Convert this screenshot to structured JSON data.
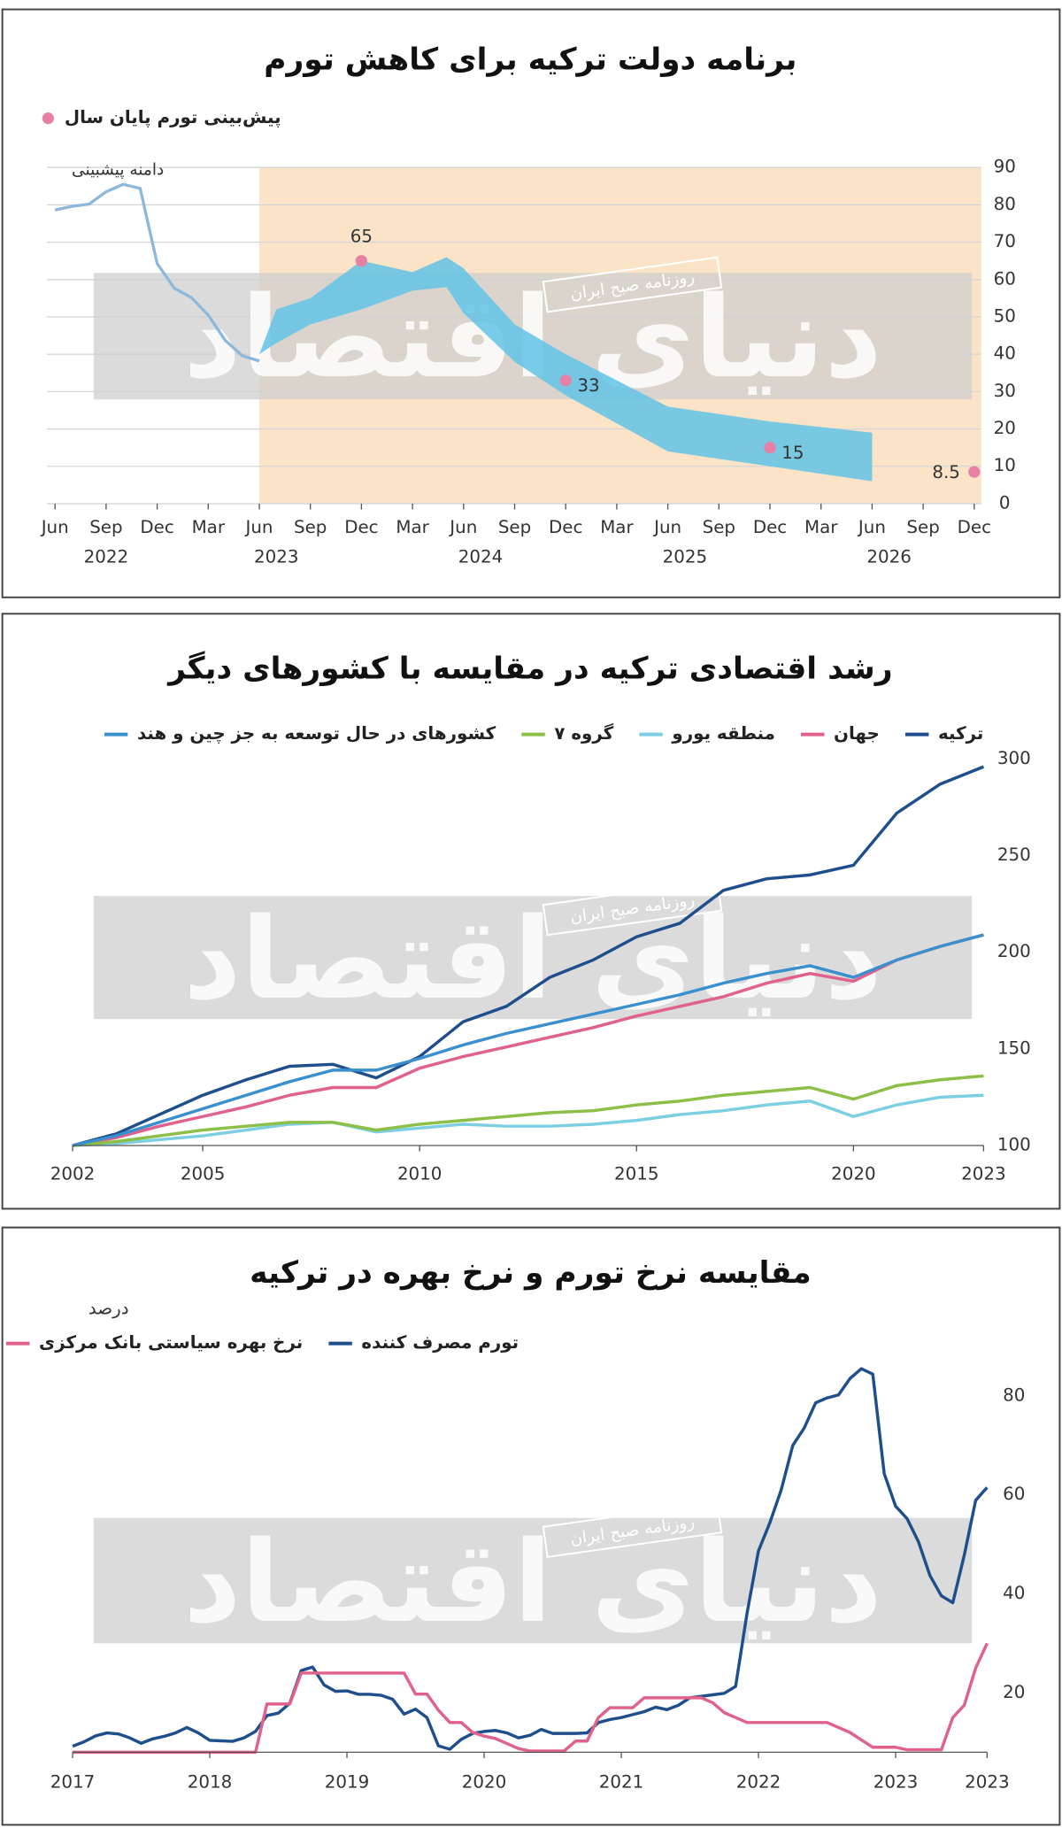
{
  "chart_data": [
    {
      "type": "line",
      "title": "برنامه دولت ترکیه برای کاهش تورم",
      "x": [
        "2022-06",
        "2022-07",
        "2022-08",
        "2022-09",
        "2022-10",
        "2022-11",
        "2022-12",
        "2023-01",
        "2023-02",
        "2023-03",
        "2023-04",
        "2023-05",
        "2023-06"
      ],
      "values": [
        78.6,
        79.6,
        80.2,
        83.5,
        85.5,
        84.4,
        64.3,
        57.7,
        55.2,
        50.5,
        43.7,
        39.6,
        38.2
      ],
      "color": "#8cb8dc",
      "band": {
        "name": "دامنه پیشبینی",
        "x": [
          "2023-06",
          "2023-07",
          "2023-09",
          "2023-12",
          "2024-03",
          "2024-05",
          "2024-06",
          "2024-09",
          "2024-12",
          "2025-06",
          "2025-12",
          "2026-06"
        ],
        "lower": [
          40,
          43,
          48,
          52,
          57,
          58,
          51,
          38,
          29,
          14,
          10,
          6
        ],
        "upper": [
          40,
          52,
          55,
          65,
          62,
          66,
          63,
          48,
          40,
          26,
          22,
          19
        ],
        "color": "#62c3e6"
      },
      "points": {
        "name": "پیش‌بینی تورم پایان سال",
        "x": [
          "2023-12",
          "2024-12",
          "2025-12",
          "2026-12"
        ],
        "values": [
          65,
          33,
          15,
          8.5
        ],
        "color": "#e77fa6"
      },
      "shaded_period": {
        "from": "2023-06",
        "to": "2026-12",
        "color": "#fbe3c8"
      },
      "xlim": [
        "2022-06",
        "2026-12"
      ],
      "xticks": [
        {
          "value": "2022-06",
          "label": "Jun"
        },
        {
          "value": "2022-09",
          "label": "Sep"
        },
        {
          "value": "2022-12",
          "label": "Dec"
        },
        {
          "value": "2023-03",
          "label": "Mar"
        },
        {
          "value": "2023-06",
          "label": "Jun"
        },
        {
          "value": "2023-09",
          "label": "Sep"
        },
        {
          "value": "2023-12",
          "label": "Dec"
        },
        {
          "value": "2024-03",
          "label": "Mar"
        },
        {
          "value": "2024-06",
          "label": "Jun"
        },
        {
          "value": "2024-09",
          "label": "Sep"
        },
        {
          "value": "2024-12",
          "label": "Dec"
        },
        {
          "value": "2025-03",
          "label": "Mar"
        },
        {
          "value": "2025-06",
          "label": "Jun"
        },
        {
          "value": "2025-09",
          "label": "Sep"
        },
        {
          "value": "2025-12",
          "label": "Dec"
        },
        {
          "value": "2026-03",
          "label": "Mar"
        },
        {
          "value": "2026-06",
          "label": "Jun"
        },
        {
          "value": "2026-09",
          "label": "Sep"
        },
        {
          "value": "2026-12",
          "label": "Dec"
        }
      ],
      "year_labels": [
        {
          "value": "2022-09",
          "label": "2022"
        },
        {
          "value": "2023-07",
          "label": "2023"
        },
        {
          "value": "2024-07",
          "label": "2024"
        },
        {
          "value": "2025-07",
          "label": "2025"
        },
        {
          "value": "2026-07",
          "label": "2026"
        }
      ],
      "ylim": [
        0,
        90
      ],
      "yticks": [
        0,
        10,
        20,
        30,
        40,
        50,
        60,
        70,
        80,
        90
      ],
      "grid": true,
      "watermark": {
        "logo": "دنیای اقتصاد",
        "tag": "روزنامه صبح ایران"
      }
    },
    {
      "type": "line",
      "title": "رشد اقتصادی ترکیه در مقایسه با کشورهای دیگر",
      "x": [
        2002,
        2003,
        2004,
        2005,
        2006,
        2007,
        2008,
        2009,
        2010,
        2011,
        2012,
        2013,
        2014,
        2015,
        2016,
        2017,
        2018,
        2019,
        2020,
        2021,
        2022,
        2023
      ],
      "series": [
        {
          "name": "ترکیه",
          "color": "#1f4e8c",
          "values": [
            100,
            106,
            116,
            126,
            134,
            141,
            142,
            135,
            146,
            164,
            172,
            187,
            196,
            208,
            215,
            232,
            238,
            240,
            245,
            272,
            287,
            296
          ]
        },
        {
          "name": "جهان",
          "color": "#e0628a",
          "values": [
            100,
            104,
            110,
            115,
            120,
            126,
            130,
            130,
            140,
            146,
            151,
            156,
            161,
            167,
            172,
            177,
            184,
            189,
            185,
            196,
            203,
            209
          ]
        },
        {
          "name": "منطقه یورو",
          "color": "#7ccfe0",
          "values": [
            100,
            101,
            103,
            105,
            108,
            111,
            112,
            107,
            109,
            111,
            110,
            110,
            111,
            113,
            116,
            118,
            121,
            123,
            115,
            121,
            125,
            126
          ]
        },
        {
          "name": "گروه ۷",
          "color": "#8cbf45",
          "values": [
            100,
            102,
            105,
            108,
            110,
            112,
            112,
            108,
            111,
            113,
            115,
            117,
            118,
            121,
            123,
            126,
            128,
            130,
            124,
            131,
            134,
            136
          ]
        },
        {
          "name": "کشورهای در حال توسعه به جز چین و هند",
          "color": "#3a8fcf",
          "values": [
            100,
            105,
            112,
            119,
            126,
            133,
            139,
            139,
            145,
            152,
            158,
            163,
            168,
            173,
            178,
            184,
            189,
            193,
            187,
            196,
            203,
            209
          ]
        }
      ],
      "xlim": [
        2002,
        2023
      ],
      "xticks": [
        2002,
        2005,
        2010,
        2015,
        2020,
        2023
      ],
      "ylim": [
        100,
        300
      ],
      "yticks": [
        100,
        150,
        200,
        250,
        300
      ],
      "grid": false,
      "watermark": {
        "logo": "دنیای اقتصاد",
        "tag": "روزنامه صبح ایران"
      }
    },
    {
      "type": "line",
      "title": "مقایسه نرخ تورم و نرخ بهره در ترکیه",
      "unit": "درصد",
      "x": [
        "2017-01",
        "2017-02",
        "2017-03",
        "2017-04",
        "2017-05",
        "2017-06",
        "2017-07",
        "2017-08",
        "2017-09",
        "2017-10",
        "2017-11",
        "2017-12",
        "2018-01",
        "2018-02",
        "2018-03",
        "2018-04",
        "2018-05",
        "2018-06",
        "2018-07",
        "2018-08",
        "2018-09",
        "2018-10",
        "2018-11",
        "2018-12",
        "2019-01",
        "2019-02",
        "2019-03",
        "2019-04",
        "2019-05",
        "2019-06",
        "2019-07",
        "2019-08",
        "2019-09",
        "2019-10",
        "2019-11",
        "2019-12",
        "2020-01",
        "2020-02",
        "2020-03",
        "2020-04",
        "2020-05",
        "2020-06",
        "2020-07",
        "2020-08",
        "2020-09",
        "2020-10",
        "2020-11",
        "2020-12",
        "2021-01",
        "2021-02",
        "2021-03",
        "2021-04",
        "2021-05",
        "2021-06",
        "2021-07",
        "2021-08",
        "2021-09",
        "2021-10",
        "2021-11",
        "2021-12",
        "2022-01",
        "2022-02",
        "2022-03",
        "2022-04",
        "2022-05",
        "2022-06",
        "2022-07",
        "2022-08",
        "2022-09",
        "2022-10",
        "2022-11",
        "2022-12",
        "2023-01",
        "2023-02",
        "2023-03",
        "2023-04",
        "2023-05",
        "2023-06",
        "2023-07",
        "2023-08",
        "2023-09"
      ],
      "series": [
        {
          "name": "تورم مصرف کننده",
          "color": "#1f4e8c",
          "values": [
            9.2,
            10.1,
            11.3,
            11.9,
            11.7,
            10.9,
            9.8,
            10.7,
            11.2,
            11.9,
            13.0,
            11.9,
            10.4,
            10.3,
            10.2,
            10.9,
            12.2,
            15.4,
            15.9,
            17.9,
            24.5,
            25.2,
            21.6,
            20.3,
            20.4,
            19.7,
            19.7,
            19.5,
            18.7,
            15.7,
            16.7,
            15.0,
            9.3,
            8.6,
            10.6,
            11.8,
            12.2,
            12.4,
            11.9,
            10.9,
            11.4,
            12.6,
            11.8,
            11.8,
            11.8,
            11.9,
            14.0,
            14.6,
            15.0,
            15.6,
            16.2,
            17.1,
            16.6,
            17.5,
            19.0,
            19.3,
            19.6,
            19.9,
            21.3,
            36.1,
            48.7,
            54.4,
            61.1,
            70.0,
            73.5,
            78.6,
            79.6,
            80.2,
            83.5,
            85.5,
            84.4,
            64.3,
            57.7,
            55.2,
            50.5,
            43.7,
            39.6,
            38.2,
            47.8,
            58.9,
            61.5
          ]
        },
        {
          "name": "نرخ بهره سیاستی بانک مرکزی",
          "color": "#e0628a",
          "values": [
            8,
            8,
            8,
            8,
            8,
            8,
            8,
            8,
            8,
            8,
            8,
            8,
            8,
            8,
            8,
            8,
            8,
            17.75,
            17.75,
            17.75,
            24,
            24,
            24,
            24,
            24,
            24,
            24,
            24,
            24,
            24,
            19.75,
            19.75,
            16.5,
            14,
            14,
            12,
            11.25,
            10.75,
            9.75,
            8.75,
            8.25,
            8.25,
            8.25,
            8.25,
            10.25,
            10.25,
            15,
            17,
            17,
            17,
            19,
            19,
            19,
            19,
            19,
            19,
            18,
            16,
            15,
            14,
            14,
            14,
            14,
            14,
            14,
            14,
            14,
            13,
            12,
            10.5,
            9,
            9,
            9,
            8.5,
            8.5,
            8.5,
            8.5,
            15,
            17.5,
            25,
            30
          ]
        }
      ],
      "xlim": [
        "2017-01",
        "2023-09"
      ],
      "xticks": [
        {
          "value": "2017-01",
          "label": "2017"
        },
        {
          "value": "2018-01",
          "label": "2018"
        },
        {
          "value": "2019-01",
          "label": "2019"
        },
        {
          "value": "2020-01",
          "label": "2020"
        },
        {
          "value": "2021-01",
          "label": "2021"
        },
        {
          "value": "2022-01",
          "label": "2022"
        },
        {
          "value": "2023-01",
          "label": "2023"
        },
        {
          "value": "2023-09",
          "label": "2023"
        }
      ],
      "ylim": [
        8,
        88
      ],
      "yticks": [
        20,
        40,
        60,
        80
      ],
      "grid": false,
      "watermark": {
        "logo": "دنیای اقتصاد",
        "tag": "روزنامه صبح ایران"
      }
    }
  ]
}
